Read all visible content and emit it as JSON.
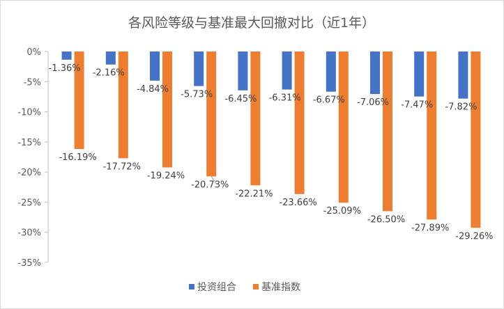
{
  "chart_data": {
    "type": "bar",
    "title": "各风险等级与基准最大回撤对比（近1年）",
    "categories": [
      "",
      "",
      "",
      "",
      "",
      "",
      "",
      "",
      "",
      ""
    ],
    "ylim": [
      -35,
      0
    ],
    "yticks": [
      0,
      -5,
      -10,
      -15,
      -20,
      -25,
      -30,
      -35
    ],
    "ytick_labels": [
      "0%",
      "-5%",
      "-10%",
      "-15%",
      "-20%",
      "-25%",
      "-30%",
      "-35%"
    ],
    "grid": false,
    "legend_position": "bottom",
    "series": [
      {
        "name": "投资组合",
        "color": "#4472C4",
        "values": [
          -1.36,
          -2.16,
          -4.84,
          -5.73,
          -6.45,
          -6.31,
          -6.67,
          -7.06,
          -7.47,
          -7.82
        ],
        "labels": [
          "-1.36%",
          "-2.16%",
          "-4.84%",
          "-5.73%",
          "-6.45%",
          "-6.31%",
          "-6.67%",
          "-7.06%",
          "-7.47%",
          "-7.82%"
        ]
      },
      {
        "name": "基准指数",
        "color": "#ED7D31",
        "values": [
          -16.19,
          -17.72,
          -19.24,
          -20.73,
          -22.21,
          -23.66,
          -25.09,
          -26.5,
          -27.89,
          -29.26
        ],
        "labels": [
          "-16.19%",
          "-17.72%",
          "-19.24%",
          "-20.73%",
          "-22.21%",
          "-23.66%",
          "-25.09%",
          "-26.50%",
          "-27.89%",
          "-29.26%"
        ]
      }
    ]
  }
}
